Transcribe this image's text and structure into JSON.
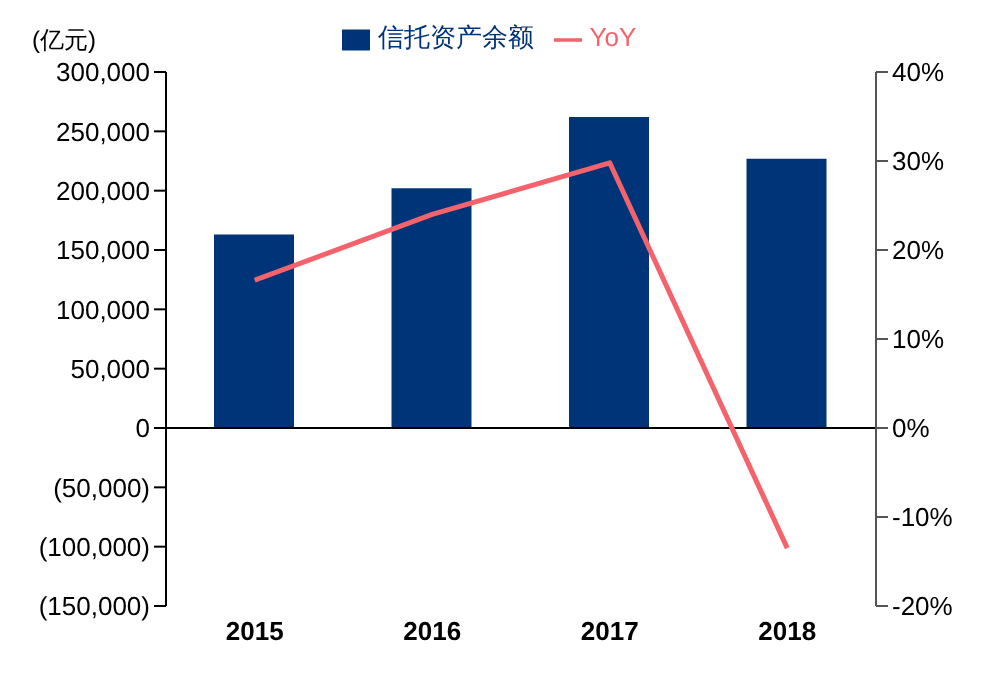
{
  "chart_data": {
    "type": "bar",
    "ylabel": "(亿元)",
    "categories": [
      "2015",
      "2016",
      "2017",
      "2018"
    ],
    "series": [
      {
        "name": "信托资产余额",
        "color": "#003478",
        "values": [
          163000,
          202000,
          262000,
          227000
        ]
      },
      {
        "name": "YoY",
        "type": "line",
        "axis": "y2",
        "color": "#f4636b",
        "values": [
          16.6,
          24.0,
          29.8,
          -13.5
        ]
      }
    ],
    "ylim": [
      -150000,
      300000
    ],
    "yticks": [
      {
        "value": -150000,
        "label": "(150,000)"
      },
      {
        "value": -100000,
        "label": "(100,000)"
      },
      {
        "value": -50000,
        "label": "(50,000)"
      },
      {
        "value": 0,
        "label": "0"
      },
      {
        "value": 50000,
        "label": "50,000"
      },
      {
        "value": 100000,
        "label": "100,000"
      },
      {
        "value": 150000,
        "label": "150,000"
      },
      {
        "value": 200000,
        "label": "200,000"
      },
      {
        "value": 250000,
        "label": "250,000"
      },
      {
        "value": 300000,
        "label": "300,000"
      }
    ],
    "y2lim": [
      -20,
      40
    ],
    "y2ticks": [
      {
        "value": -20,
        "label": "-20%"
      },
      {
        "value": -10,
        "label": "-10%"
      },
      {
        "value": 0,
        "label": "0%"
      },
      {
        "value": 10,
        "label": "10%"
      },
      {
        "value": 20,
        "label": "20%"
      },
      {
        "value": 30,
        "label": "30%"
      },
      {
        "value": 40,
        "label": "40%"
      }
    ],
    "legend": "top"
  }
}
